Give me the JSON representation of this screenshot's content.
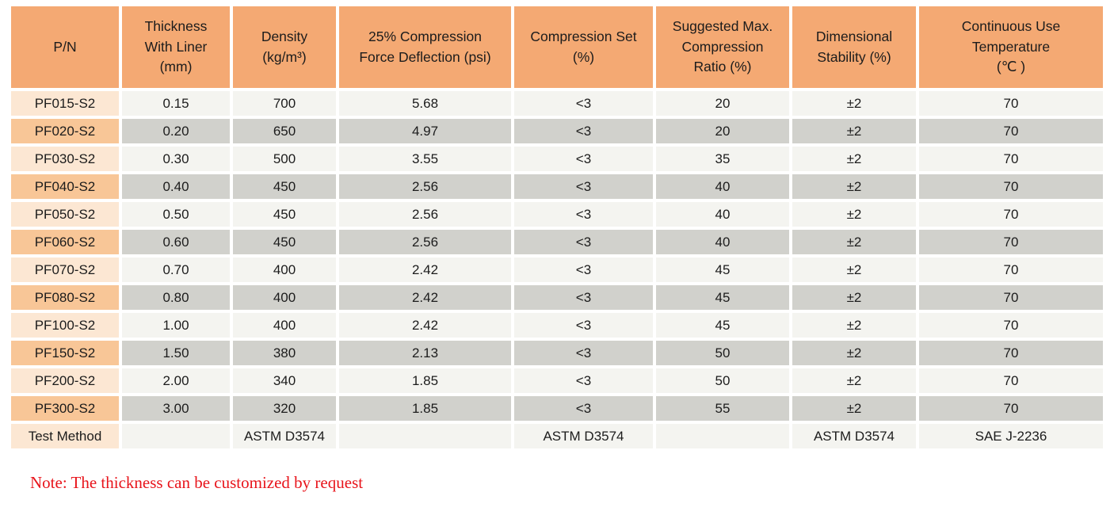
{
  "colors": {
    "header_bg": "#F4A973",
    "pn_odd_bg": "#FCE7D3",
    "pn_even_bg": "#F8C697",
    "cell_odd_bg": "#F4F4F0",
    "cell_even_bg": "#D1D1CC",
    "text": "#1C1C1C",
    "note_red": "#E8141B"
  },
  "table": {
    "columns": [
      {
        "id": "pn",
        "label": "P/N"
      },
      {
        "id": "thickness",
        "label": "Thickness\nWith Liner\n(mm)"
      },
      {
        "id": "density",
        "label": "Density\n(kg/m³)"
      },
      {
        "id": "cfd",
        "label": "25% Compression\nForce Deflection (psi)"
      },
      {
        "id": "compression-set",
        "label": "Compression Set\n(%)"
      },
      {
        "id": "max-compression-ratio",
        "label": "Suggested Max.\nCompression\nRatio (%)"
      },
      {
        "id": "dimensional-stability",
        "label": "Dimensional\nStability (%)"
      },
      {
        "id": "continuous-use-temp",
        "label": "Continuous Use\nTemperature\n(℃ )"
      }
    ],
    "rows": [
      {
        "pn": "PF015-S2",
        "values": [
          "0.15",
          "700",
          "5.68",
          "<3",
          "20",
          "±2",
          "70"
        ]
      },
      {
        "pn": "PF020-S2",
        "values": [
          "0.20",
          "650",
          "4.97",
          "<3",
          "20",
          "±2",
          "70"
        ]
      },
      {
        "pn": "PF030-S2",
        "values": [
          "0.30",
          "500",
          "3.55",
          "<3",
          "35",
          "±2",
          "70"
        ]
      },
      {
        "pn": "PF040-S2",
        "values": [
          "0.40",
          "450",
          "2.56",
          "<3",
          "40",
          "±2",
          "70"
        ]
      },
      {
        "pn": "PF050-S2",
        "values": [
          "0.50",
          "450",
          "2.56",
          "<3",
          "40",
          "±2",
          "70"
        ]
      },
      {
        "pn": "PF060-S2",
        "values": [
          "0.60",
          "450",
          "2.56",
          "<3",
          "40",
          "±2",
          "70"
        ]
      },
      {
        "pn": "PF070-S2",
        "values": [
          "0.70",
          "400",
          "2.42",
          "<3",
          "45",
          "±2",
          "70"
        ]
      },
      {
        "pn": "PF080-S2",
        "values": [
          "0.80",
          "400",
          "2.42",
          "<3",
          "45",
          "±2",
          "70"
        ]
      },
      {
        "pn": "PF100-S2",
        "values": [
          "1.00",
          "400",
          "2.42",
          "<3",
          "45",
          "±2",
          "70"
        ]
      },
      {
        "pn": "PF150-S2",
        "values": [
          "1.50",
          "380",
          "2.13",
          "<3",
          "50",
          "±2",
          "70"
        ]
      },
      {
        "pn": "PF200-S2",
        "values": [
          "2.00",
          "340",
          "1.85",
          "<3",
          "50",
          "±2",
          "70"
        ]
      },
      {
        "pn": "PF300-S2",
        "values": [
          "3.00",
          "320",
          "1.85",
          "<3",
          "55",
          "±2",
          "70"
        ]
      },
      {
        "pn": "Test Method",
        "values": [
          "",
          "ASTM D3574",
          "",
          "ASTM D3574",
          "",
          "ASTM D3574",
          "SAE J-2236"
        ]
      }
    ]
  },
  "note": "Note: The thickness can be customized by request"
}
